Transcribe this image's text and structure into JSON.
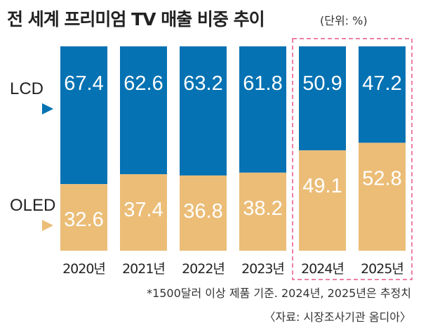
{
  "title": "전 세계 프리미엄 TV 매출 비중 추이",
  "unit": "(단위: %)",
  "footnote": "*1500달러 이상 제품 기준. 2024년, 2025년은 추정치",
  "source": "〈자료: 시장조사기관 옴디아〉",
  "colors": {
    "lcd": "#0472b3",
    "oled": "#ebbd77",
    "highlight_border": "#e8578a"
  },
  "chart_data": {
    "type": "bar",
    "stacked": true,
    "categories": [
      "2020년",
      "2021년",
      "2022년",
      "2023년",
      "2024년",
      "2025년"
    ],
    "series": [
      {
        "name": "LCD",
        "values": [
          67.4,
          62.6,
          63.2,
          61.8,
          50.9,
          47.2
        ]
      },
      {
        "name": "OLED",
        "values": [
          32.6,
          37.4,
          36.8,
          38.2,
          49.1,
          52.8
        ]
      }
    ],
    "ylim": [
      0,
      100
    ],
    "estimated_categories": [
      "2024년",
      "2025년"
    ],
    "legend": "left"
  }
}
